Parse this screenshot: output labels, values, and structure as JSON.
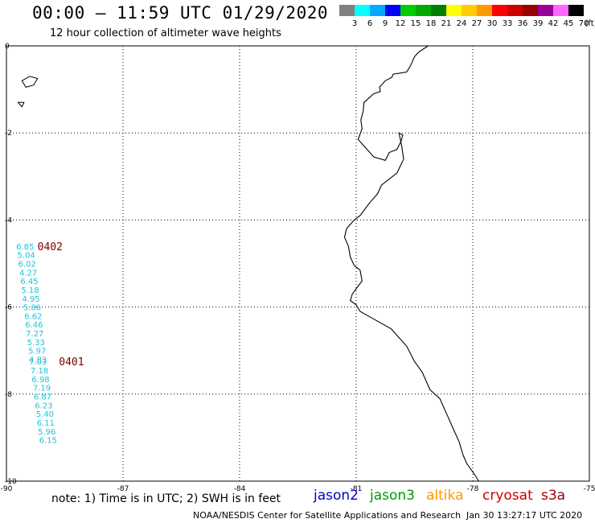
{
  "header": {
    "title": "00:00 – 11:59 UTC 01/29/2020",
    "subtitle": "12 hour collection of altimeter wave heights"
  },
  "color_scale": {
    "bins": [
      {
        "label": "3",
        "color": "#808080"
      },
      {
        "label": "6",
        "color": "#00ffff"
      },
      {
        "label": "9",
        "color": "#00aaff"
      },
      {
        "label": "12",
        "color": "#0000ff"
      },
      {
        "label": "15",
        "color": "#00cc00"
      },
      {
        "label": "18",
        "color": "#00aa00"
      },
      {
        "label": "21",
        "color": "#008000"
      },
      {
        "label": "24",
        "color": "#ffff00"
      },
      {
        "label": "27",
        "color": "#ffcc00"
      },
      {
        "label": "30",
        "color": "#ff9900"
      },
      {
        "label": "33",
        "color": "#ff0000"
      },
      {
        "label": "36",
        "color": "#cc0000"
      },
      {
        "label": "39",
        "color": "#990000"
      },
      {
        "label": "42",
        "color": "#990099"
      },
      {
        "label": "45",
        "color": "#ff66ff"
      },
      {
        "label": "70",
        "color": "#000000"
      }
    ],
    "unit": "(ft)"
  },
  "map": {
    "x_ticks": [
      "-90",
      "-87",
      "-84",
      "-81",
      "-78",
      "-75"
    ],
    "y_ticks": [
      "0",
      "-2",
      "-4",
      "-6",
      "-8",
      "-10"
    ],
    "track_color": "#1cc4dc",
    "time_label_color": "#7a0000",
    "coastline": [
      [
        -79.15,
        0.0
      ],
      [
        -79.4,
        -0.15
      ],
      [
        -79.5,
        -0.25
      ],
      [
        -79.6,
        -0.45
      ],
      [
        -79.7,
        -0.6
      ],
      [
        -80.05,
        -0.65
      ],
      [
        -80.08,
        -0.72
      ],
      [
        -80.25,
        -0.8
      ],
      [
        -80.4,
        -0.95
      ],
      [
        -80.38,
        -1.05
      ],
      [
        -80.55,
        -1.1
      ],
      [
        -80.8,
        -1.3
      ],
      [
        -80.82,
        -1.5
      ],
      [
        -80.88,
        -1.7
      ],
      [
        -80.85,
        -1.9
      ],
      [
        -80.95,
        -2.15
      ],
      [
        -80.55,
        -2.55
      ],
      [
        -80.25,
        -2.63
      ],
      [
        -80.15,
        -2.45
      ],
      [
        -79.95,
        -2.38
      ],
      [
        -79.85,
        -2.2
      ],
      [
        -79.8,
        -2.05
      ],
      [
        -79.9,
        -2.0
      ],
      [
        -79.83,
        -2.3
      ],
      [
        -79.78,
        -2.6
      ],
      [
        -79.95,
        -2.92
      ],
      [
        -80.35,
        -3.2
      ],
      [
        -80.45,
        -3.4
      ],
      [
        -80.65,
        -3.6
      ],
      [
        -80.9,
        -3.9
      ],
      [
        -81.05,
        -4.0
      ],
      [
        -81.25,
        -4.2
      ],
      [
        -81.3,
        -4.4
      ],
      [
        -81.2,
        -4.6
      ],
      [
        -81.15,
        -4.85
      ],
      [
        -81.05,
        -5.05
      ],
      [
        -80.9,
        -5.15
      ],
      [
        -80.85,
        -5.4
      ],
      [
        -81.1,
        -5.7
      ],
      [
        -81.15,
        -5.85
      ],
      [
        -81.0,
        -5.95
      ],
      [
        -80.9,
        -6.1
      ],
      [
        -80.5,
        -6.3
      ],
      [
        -80.1,
        -6.5
      ],
      [
        -79.7,
        -6.9
      ],
      [
        -79.5,
        -7.25
      ],
      [
        -79.3,
        -7.5
      ],
      [
        -79.1,
        -7.9
      ],
      [
        -78.85,
        -8.1
      ],
      [
        -78.65,
        -8.5
      ],
      [
        -78.5,
        -8.8
      ],
      [
        -78.35,
        -9.1
      ],
      [
        -78.25,
        -9.4
      ],
      [
        -78.15,
        -9.6
      ],
      [
        -77.95,
        -9.85
      ],
      [
        -77.85,
        -10.0
      ]
    ],
    "islands": [
      [
        [
          -89.6,
          -0.8
        ],
        [
          -89.4,
          -0.7
        ],
        [
          -89.2,
          -0.75
        ],
        [
          -89.3,
          -0.9
        ],
        [
          -89.5,
          -0.95
        ],
        [
          -89.6,
          -0.8
        ]
      ],
      [
        [
          -89.7,
          -1.3
        ],
        [
          -89.55,
          -1.3
        ],
        [
          -89.6,
          -1.4
        ],
        [
          -89.7,
          -1.3
        ]
      ]
    ],
    "track_labels": [
      {
        "value": "6.85",
        "lon": -89.75,
        "lat": -4.6
      },
      {
        "value": "5.04",
        "lon": -89.72,
        "lat": -4.8
      },
      {
        "value": "6.02",
        "lon": -89.7,
        "lat": -5.0
      },
      {
        "value": "4.27",
        "lon": -89.67,
        "lat": -5.2
      },
      {
        "value": "6.45",
        "lon": -89.64,
        "lat": -5.4
      },
      {
        "value": "5.18",
        "lon": -89.62,
        "lat": -5.6
      },
      {
        "value": "4.95",
        "lon": -89.6,
        "lat": -5.8
      },
      {
        "value": "5.86",
        "lon": -89.57,
        "lat": -6.0
      },
      {
        "value": "6.62",
        "lon": -89.54,
        "lat": -6.2
      },
      {
        "value": "6.46",
        "lon": -89.52,
        "lat": -6.4
      },
      {
        "value": "7.27",
        "lon": -89.5,
        "lat": -6.6
      },
      {
        "value": "5.33",
        "lon": -89.47,
        "lat": -6.8
      },
      {
        "value": "5.97",
        "lon": -89.44,
        "lat": -7.0
      },
      {
        "value": "4.83",
        "lon": -89.42,
        "lat": -7.2
      },
      {
        "value": "7.03",
        "lon": -89.42,
        "lat": -7.25
      },
      {
        "value": "7.18",
        "lon": -89.38,
        "lat": -7.45
      },
      {
        "value": "6.98",
        "lon": -89.35,
        "lat": -7.65
      },
      {
        "value": "7.19",
        "lon": -89.32,
        "lat": -7.85
      },
      {
        "value": "6.87",
        "lon": -89.3,
        "lat": -8.05
      },
      {
        "value": "6.23",
        "lon": -89.27,
        "lat": -8.25
      },
      {
        "value": "5.40",
        "lon": -89.24,
        "lat": -8.45
      },
      {
        "value": "6.11",
        "lon": -89.22,
        "lat": -8.65
      },
      {
        "value": "5.96",
        "lon": -89.19,
        "lat": -8.85
      },
      {
        "value": "6.15",
        "lon": -89.16,
        "lat": -9.05
      }
    ],
    "time_labels": [
      {
        "value": "0402",
        "lon": -89.2,
        "lat": -4.6
      },
      {
        "value": "0401",
        "lon": -88.65,
        "lat": -7.25
      }
    ]
  },
  "footer": {
    "note": "note: 1) Time is in UTC; 2) SWH is in feet",
    "satellites": [
      {
        "name": "jason2",
        "color": "#0000cc"
      },
      {
        "name": "jason3",
        "color": "#009900"
      },
      {
        "name": "altika",
        "color": "#ff9900"
      },
      {
        "name": "cryosat",
        "color": "#cc0000"
      },
      {
        "name": "s3a",
        "color": "#990000"
      }
    ],
    "credit": "NOAA/NESDIS Center for Satellite Applications and Research",
    "timestamp": "Jan 30 13:27:17 UTC 2020"
  }
}
